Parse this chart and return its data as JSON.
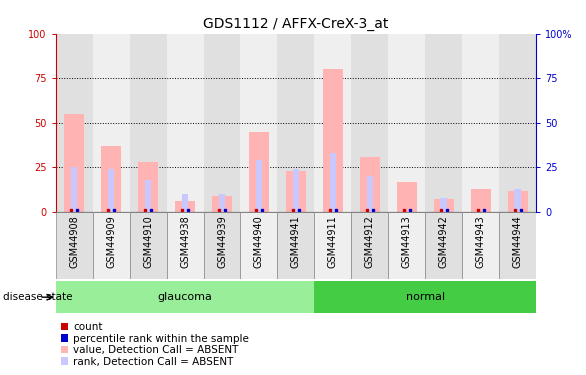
{
  "title": "GDS1112 / AFFX-CreX-3_at",
  "samples": [
    "GSM44908",
    "GSM44909",
    "GSM44910",
    "GSM44938",
    "GSM44939",
    "GSM44940",
    "GSM44941",
    "GSM44911",
    "GSM44912",
    "GSM44913",
    "GSM44942",
    "GSM44943",
    "GSM44944"
  ],
  "glaucoma_samples": [
    "GSM44908",
    "GSM44909",
    "GSM44910",
    "GSM44938",
    "GSM44939",
    "GSM44940",
    "GSM44941"
  ],
  "normal_samples": [
    "GSM44911",
    "GSM44912",
    "GSM44913",
    "GSM44942",
    "GSM44943",
    "GSM44944"
  ],
  "pink_values": [
    55,
    37,
    28,
    6,
    9,
    45,
    23,
    80,
    31,
    17,
    7,
    13,
    12
  ],
  "blue_values": [
    25,
    24,
    18,
    10,
    10,
    29,
    24,
    33,
    20,
    0,
    8,
    0,
    13
  ],
  "pink_marker_values": [
    55,
    37,
    28,
    6,
    9,
    45,
    23,
    80,
    31,
    17,
    7,
    13,
    12
  ],
  "blue_marker_values": [
    25,
    24,
    18,
    10,
    10,
    29,
    24,
    33,
    20,
    0,
    8,
    0,
    13
  ],
  "ylim": [
    0,
    100
  ],
  "yticks": [
    0,
    25,
    50,
    75,
    100
  ],
  "ytick_labels_left": [
    "0",
    "25",
    "50",
    "75",
    "100"
  ],
  "ytick_labels_right": [
    "0",
    "25",
    "50",
    "75",
    "100%"
  ],
  "left_axis_color": "#cc0000",
  "right_axis_color": "#0000cc",
  "pink_bar_color": "#ffb3b3",
  "blue_bar_color": "#c8c8ff",
  "pink_marker_color": "#cc0000",
  "blue_marker_color": "#0000cc",
  "grid_color": "#000000",
  "bg_color": "#ffffff",
  "col_bg_even": "#e0e0e0",
  "col_bg_odd": "#efefef",
  "glaucoma_label": "glaucoma",
  "normal_label": "normal",
  "glaucoma_color": "#99ee99",
  "normal_color": "#44cc44",
  "disease_state_label": "disease state",
  "legend_entries": [
    {
      "label": "count",
      "color": "#cc0000"
    },
    {
      "label": "percentile rank within the sample",
      "color": "#0000cc"
    },
    {
      "label": "value, Detection Call = ABSENT",
      "color": "#ffb3b3"
    },
    {
      "label": "rank, Detection Call = ABSENT",
      "color": "#c8c8ff"
    }
  ],
  "tick_label_fontsize": 7,
  "title_fontsize": 10,
  "legend_fontsize": 7.5,
  "band_fontsize": 8
}
